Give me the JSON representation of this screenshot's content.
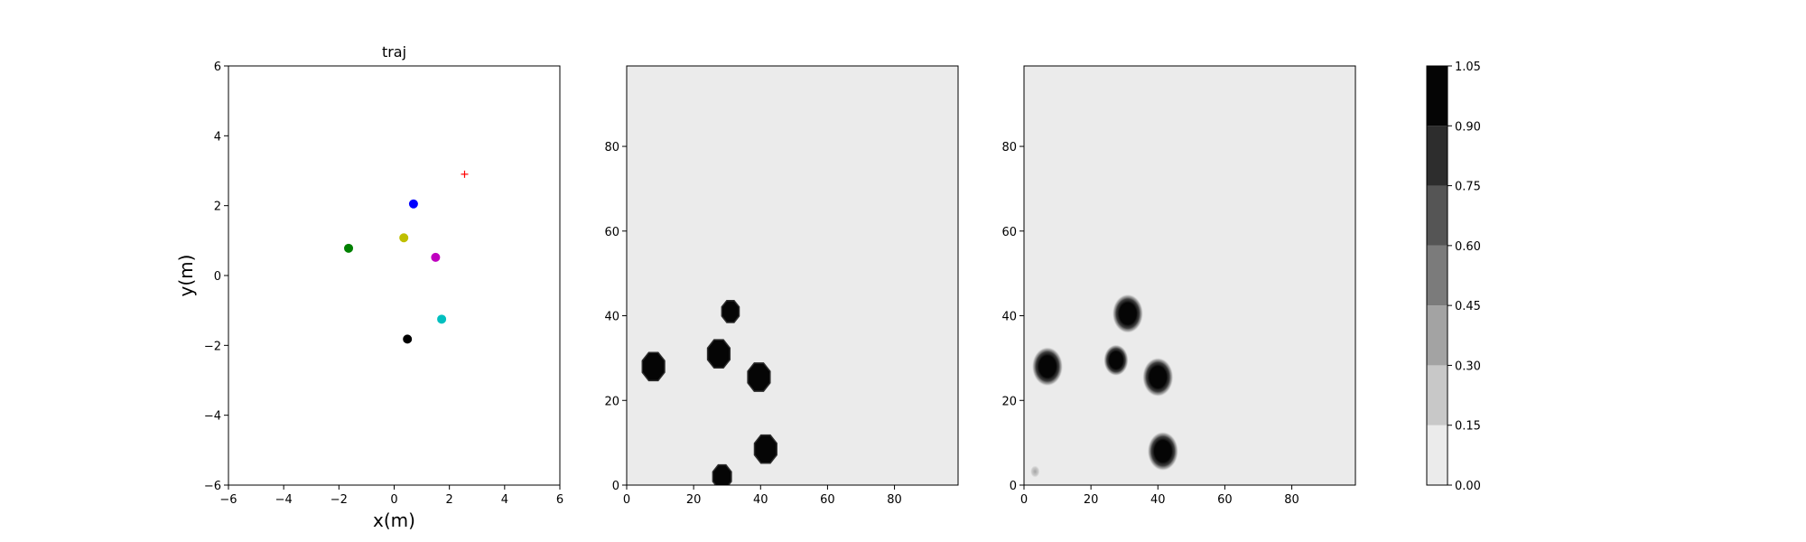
{
  "chart_data": [
    {
      "type": "scatter",
      "title": "traj",
      "xlabel": "x(m)",
      "ylabel": "y(m)",
      "xlim": [
        -6,
        6
      ],
      "ylim": [
        -6,
        6
      ],
      "xticks": [
        "−6",
        "−4",
        "−2",
        "0",
        "2",
        "4",
        "6"
      ],
      "yticks": [
        "−6",
        "−4",
        "−2",
        "0",
        "2",
        "4",
        "6"
      ],
      "grid": false,
      "points": [
        {
          "x": 0.7,
          "y": 2.05,
          "color": "#0000ff",
          "marker": "circle"
        },
        {
          "x": -1.65,
          "y": 0.78,
          "color": "#008000",
          "marker": "circle"
        },
        {
          "x": 0.35,
          "y": 1.08,
          "color": "#bfbf00",
          "marker": "circle"
        },
        {
          "x": 1.5,
          "y": 0.52,
          "color": "#bf00bf",
          "marker": "circle"
        },
        {
          "x": 1.72,
          "y": -1.25,
          "color": "#00bfbf",
          "marker": "circle"
        },
        {
          "x": 0.48,
          "y": -1.82,
          "color": "#000000",
          "marker": "circle"
        },
        {
          "x": 2.55,
          "y": 2.9,
          "color": "#ff0000",
          "marker": "plus"
        }
      ]
    },
    {
      "type": "heatmap",
      "title": "",
      "xlim": [
        0,
        99
      ],
      "ylim": [
        0,
        99
      ],
      "xticks": [
        "0",
        "20",
        "40",
        "60",
        "80"
      ],
      "yticks": [
        "0",
        "20",
        "40",
        "60",
        "80"
      ],
      "background_value": 0.0,
      "blobs": [
        {
          "x": 8,
          "y": 28,
          "radius": 3.6,
          "value": 1.0
        },
        {
          "x": 27.5,
          "y": 31,
          "radius": 3.6,
          "value": 1.0
        },
        {
          "x": 31,
          "y": 41,
          "radius": 2.8,
          "value": 1.0
        },
        {
          "x": 39.5,
          "y": 25.5,
          "radius": 3.6,
          "value": 1.0
        },
        {
          "x": 41.5,
          "y": 8.5,
          "radius": 3.6,
          "value": 1.0
        },
        {
          "x": 28.5,
          "y": 2,
          "radius": 3.0,
          "value": 1.0
        }
      ]
    },
    {
      "type": "heatmap",
      "title": "",
      "xlim": [
        0,
        99
      ],
      "ylim": [
        0,
        99
      ],
      "xticks": [
        "0",
        "20",
        "40",
        "60",
        "80"
      ],
      "yticks": [
        "0",
        "20",
        "40",
        "60",
        "80"
      ],
      "background_value": 0.0,
      "blobs": [
        {
          "x": 7,
          "y": 28,
          "radius": 4.0,
          "value": 1.0
        },
        {
          "x": 27.5,
          "y": 29.5,
          "radius": 3.2,
          "value": 1.0
        },
        {
          "x": 31,
          "y": 40.5,
          "radius": 4.0,
          "value": 1.0
        },
        {
          "x": 40,
          "y": 25.5,
          "radius": 4.0,
          "value": 1.0
        },
        {
          "x": 41.5,
          "y": 8,
          "radius": 4.0,
          "value": 1.0
        },
        {
          "x": 3.3,
          "y": 3.2,
          "radius": 1.2,
          "value": 0.3
        }
      ]
    }
  ],
  "colorbar": {
    "levels": [
      0.0,
      0.15,
      0.3,
      0.45,
      0.6,
      0.75,
      0.9,
      1.05
    ],
    "tick_labels": [
      "0.00",
      "0.15",
      "0.30",
      "0.45",
      "0.60",
      "0.75",
      "0.90",
      "1.05"
    ],
    "colors": [
      "#ebebeb",
      "#c8c8c8",
      "#a3a3a3",
      "#7b7b7b",
      "#555555",
      "#2d2d2d",
      "#050505"
    ]
  }
}
